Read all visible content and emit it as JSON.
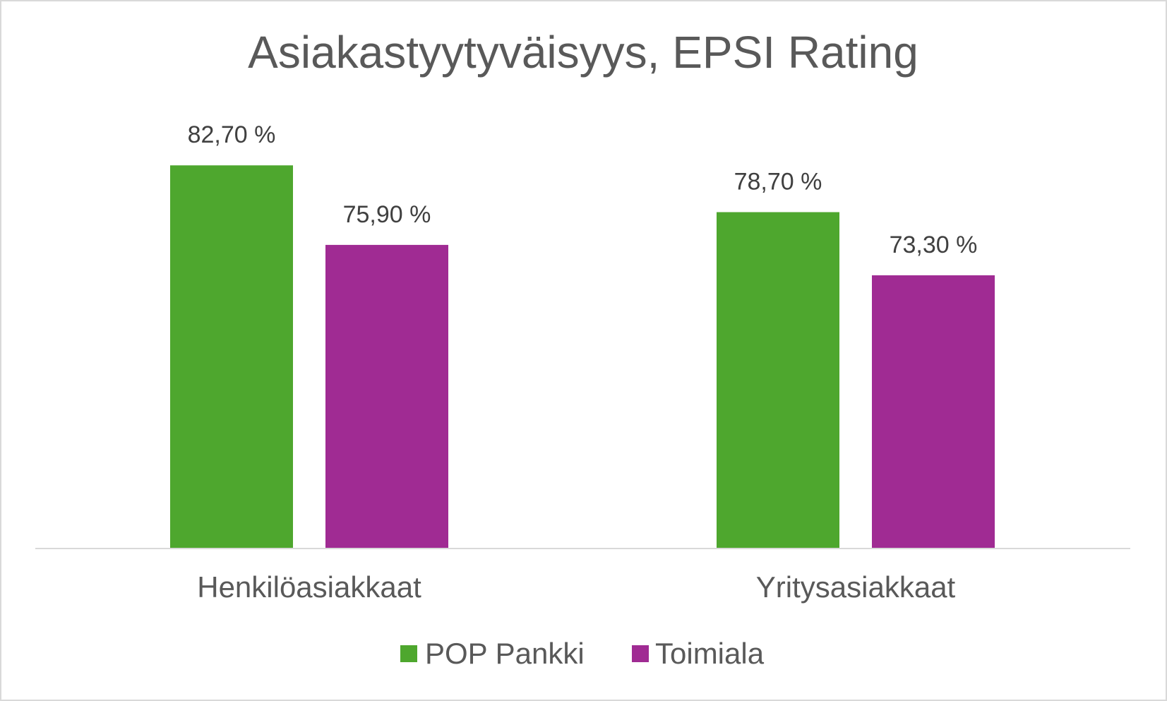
{
  "chart_data": {
    "type": "bar",
    "title": "Asiakastyytyväisyys, EPSI Rating",
    "categories": [
      "Henkilöasiakkaat",
      "Yritysasiakkaat"
    ],
    "series": [
      {
        "name": "POP Pankki",
        "values": [
          82.7,
          78.7
        ],
        "labels": [
          "82,70 %",
          "78,70 %"
        ],
        "color": "#4ea72e"
      },
      {
        "name": "Toimiala",
        "values": [
          75.9,
          73.3
        ],
        "labels": [
          "75,90 %",
          "73,30 %"
        ],
        "color": "#a02b93"
      }
    ],
    "ylim": [
      50,
      87
    ],
    "grid": false,
    "legend": "bottom"
  }
}
